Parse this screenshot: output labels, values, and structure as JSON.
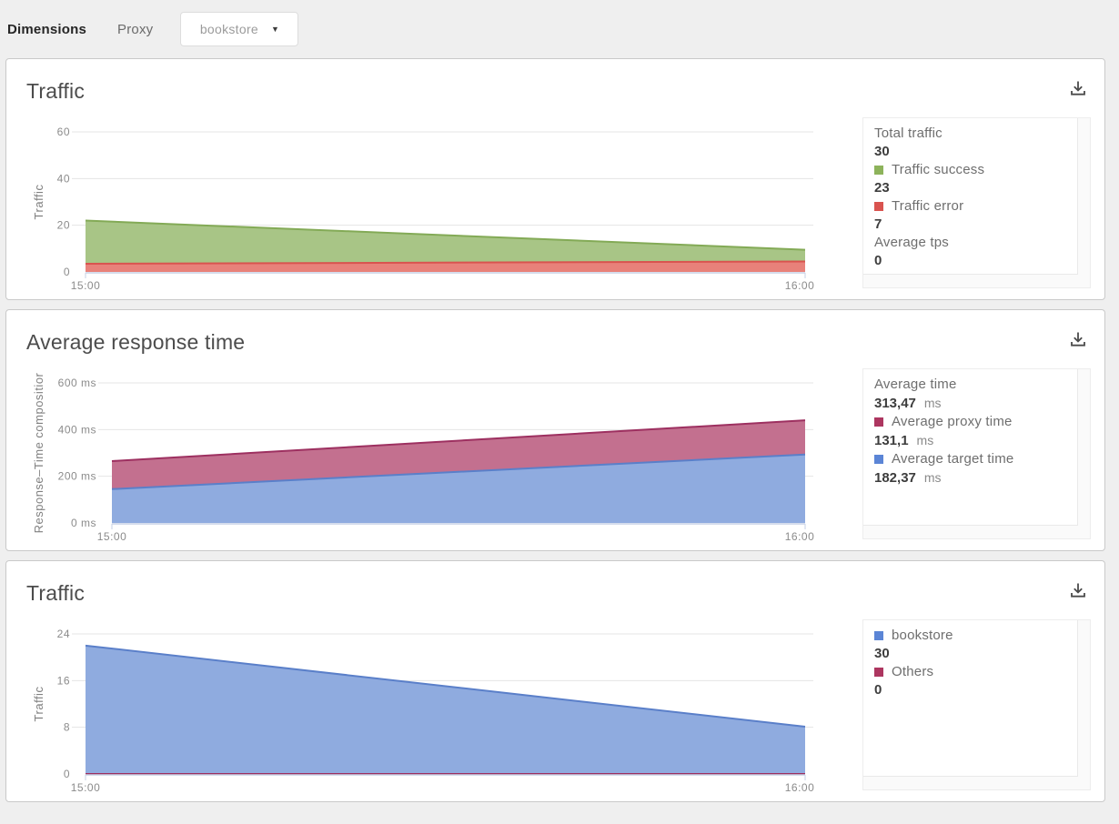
{
  "toolbar": {
    "dimensions_label": "Dimensions",
    "proxy_label": "Proxy",
    "proxy_value": "bookstore",
    "caret": "▼"
  },
  "colors": {
    "traffic_success_fill": "#a8c586",
    "traffic_success_line": "#83aa56",
    "traffic_error_fill": "#e8817a",
    "traffic_error_line": "#d9534f",
    "proxy_time_fill": "#c3708f",
    "proxy_time_line": "#9d3060",
    "target_time_fill": "#8fabdf",
    "target_time_line": "#5a7fc9",
    "axis_line": "#c7d2e6",
    "gridline": "#e4e4e4"
  },
  "chart_data": [
    {
      "type": "area",
      "title": "Traffic",
      "ylabel": "Traffic",
      "x_categories": [
        "15:00",
        "16:00"
      ],
      "ylim": [
        0,
        60
      ],
      "yticks": [
        {
          "v": 0,
          "label": "0"
        },
        {
          "v": 20,
          "label": "20"
        },
        {
          "v": 40,
          "label": "40"
        },
        {
          "v": 60,
          "label": "60"
        }
      ],
      "stacked": true,
      "grid": true,
      "series": [
        {
          "name": "Traffic error",
          "values": [
            3.5,
            4.5
          ],
          "fill": "#e8817a",
          "stroke": "#d9534f"
        },
        {
          "name": "Traffic success",
          "values": [
            18.5,
            5
          ],
          "fill": "#a8c586",
          "stroke": "#83aa56"
        }
      ],
      "legend": [
        {
          "label": "Total traffic",
          "value": "30"
        },
        {
          "label": "Traffic success",
          "value": "23",
          "swatch": "#8db35b"
        },
        {
          "label": "Traffic error",
          "value": "7",
          "swatch": "#d9534f"
        },
        {
          "label": "Average tps",
          "value": "0"
        }
      ]
    },
    {
      "type": "area",
      "title": "Average response time",
      "ylabel": "Response–Time compositior",
      "x_categories": [
        "15:00",
        "16:00"
      ],
      "ylim": [
        0,
        600
      ],
      "yticks": [
        {
          "v": 0,
          "label": "0 ms"
        },
        {
          "v": 200,
          "label": "200 ms"
        },
        {
          "v": 400,
          "label": "400 ms"
        },
        {
          "v": 600,
          "label": "600 ms"
        }
      ],
      "stacked": true,
      "grid": true,
      "series": [
        {
          "name": "Average target time",
          "values": [
            145,
            293
          ],
          "fill": "#8fabdf",
          "stroke": "#5a7fc9"
        },
        {
          "name": "Average proxy time",
          "values": [
            120,
            147
          ],
          "fill": "#c3708f",
          "stroke": "#9d3060"
        }
      ],
      "legend": [
        {
          "label": "Average time",
          "value": "313,47",
          "unit": "ms"
        },
        {
          "label": "Average proxy time",
          "value": "131,1",
          "unit": "ms",
          "swatch": "#ad3660"
        },
        {
          "label": "Average target time",
          "value": "182,37",
          "unit": "ms",
          "swatch": "#5b85d6"
        }
      ]
    },
    {
      "type": "area",
      "title": "Traffic",
      "ylabel": "Traffic",
      "x_categories": [
        "15:00",
        "16:00"
      ],
      "ylim": [
        0,
        24
      ],
      "yticks": [
        {
          "v": 0,
          "label": "0"
        },
        {
          "v": 8,
          "label": "8"
        },
        {
          "v": 16,
          "label": "16"
        },
        {
          "v": 24,
          "label": "24"
        }
      ],
      "stacked": true,
      "grid": true,
      "series": [
        {
          "name": "Others",
          "values": [
            0,
            0
          ],
          "fill": "#c3708f",
          "stroke": "#9d3060"
        },
        {
          "name": "bookstore",
          "values": [
            22,
            8.1
          ],
          "fill": "#8fabdf",
          "stroke": "#5a7fc9"
        }
      ],
      "legend": [
        {
          "label": "bookstore",
          "value": "30",
          "swatch": "#5b85d6"
        },
        {
          "label": "Others",
          "value": "0",
          "swatch": "#ad3660"
        }
      ]
    }
  ]
}
